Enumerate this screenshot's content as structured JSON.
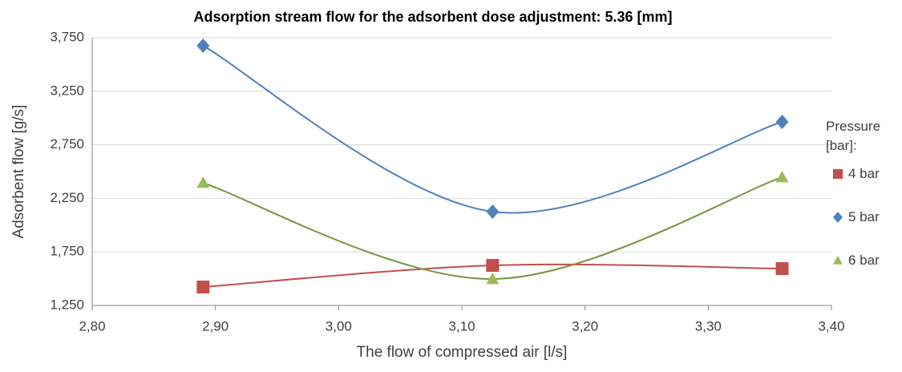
{
  "chart_data": {
    "type": "line",
    "title": "Adsorption stream flow for the adsorbent dose adjustment: 5.36 [mm]",
    "x_label": "The flow of compressed air [l/s]",
    "y_label": "Adsorbent flow [g/s]",
    "legend_title": "Pressure [bar]:",
    "legend_position": "right",
    "grid": true,
    "smooth": true,
    "x": [
      2.89,
      3.125,
      3.36
    ],
    "xlim": [
      2.8,
      3.4
    ],
    "xticks": [
      {
        "value": 2.8,
        "label": "2,80"
      },
      {
        "value": 2.9,
        "label": "2,90"
      },
      {
        "value": 3.0,
        "label": "3,00"
      },
      {
        "value": 3.1,
        "label": "3,10"
      },
      {
        "value": 3.2,
        "label": "3,20"
      },
      {
        "value": 3.3,
        "label": "3,30"
      },
      {
        "value": 3.4,
        "label": "3,40"
      }
    ],
    "ylim": [
      1250,
      3750
    ],
    "yticks": [
      {
        "value": 1250,
        "label": "1,250"
      },
      {
        "value": 1750,
        "label": "1,750"
      },
      {
        "value": 2250,
        "label": "2,250"
      },
      {
        "value": 2750,
        "label": "2,750"
      },
      {
        "value": 3250,
        "label": "3,250"
      },
      {
        "value": 3750,
        "label": "3,750"
      }
    ],
    "series": [
      {
        "name": "4 bar",
        "color": "#c0504d",
        "marker": "square",
        "values": [
          1422,
          1624,
          1594
        ]
      },
      {
        "name": "5 bar",
        "color": "#4f81bd",
        "marker": "diamond",
        "values": [
          3675,
          2126,
          2964
        ]
      },
      {
        "name": "6 bar",
        "color": "#9bbb59",
        "marker": "triangle",
        "values": [
          2395,
          1497,
          2448
        ]
      }
    ]
  }
}
